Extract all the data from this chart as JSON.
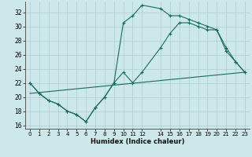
{
  "xlabel": "Humidex (Indice chaleur)",
  "xlim": [
    -0.5,
    23.5
  ],
  "ylim": [
    15.5,
    33.5
  ],
  "yticks": [
    16,
    18,
    20,
    22,
    24,
    26,
    28,
    30,
    32
  ],
  "xticks": [
    0,
    1,
    2,
    3,
    4,
    5,
    6,
    7,
    8,
    9,
    10,
    11,
    12,
    14,
    15,
    16,
    17,
    18,
    19,
    20,
    21,
    22,
    23
  ],
  "line_color": "#1a6b5e",
  "bg_color": "#cce8eb",
  "grid_color": "#aacccc",
  "line1_x": [
    0,
    1,
    2,
    3,
    4,
    5,
    6,
    7,
    8,
    9,
    10,
    11,
    12,
    14,
    15,
    16,
    17,
    18,
    19,
    20,
    21,
    22,
    23
  ],
  "line1_y": [
    22,
    20.5,
    19.5,
    19,
    18,
    17.5,
    16.5,
    18.5,
    20,
    22,
    30.5,
    31.5,
    33,
    32.5,
    31.5,
    31.5,
    31,
    30.5,
    30,
    29.5,
    27,
    25,
    23.5
  ],
  "line2_x": [
    0,
    1,
    2,
    3,
    4,
    5,
    6,
    7,
    8,
    9,
    10,
    11,
    12,
    14,
    15,
    16,
    17,
    18,
    19,
    20,
    21,
    22,
    23
  ],
  "line2_y": [
    22,
    20.5,
    19.5,
    19,
    18,
    17.5,
    16.5,
    18.5,
    20,
    22,
    23.5,
    22,
    23.5,
    27,
    29,
    30.5,
    30.5,
    30,
    29.5,
    29.5,
    26.5,
    25,
    23.5
  ],
  "line3_x": [
    0,
    23
  ],
  "line3_y": [
    20.5,
    23.5
  ]
}
